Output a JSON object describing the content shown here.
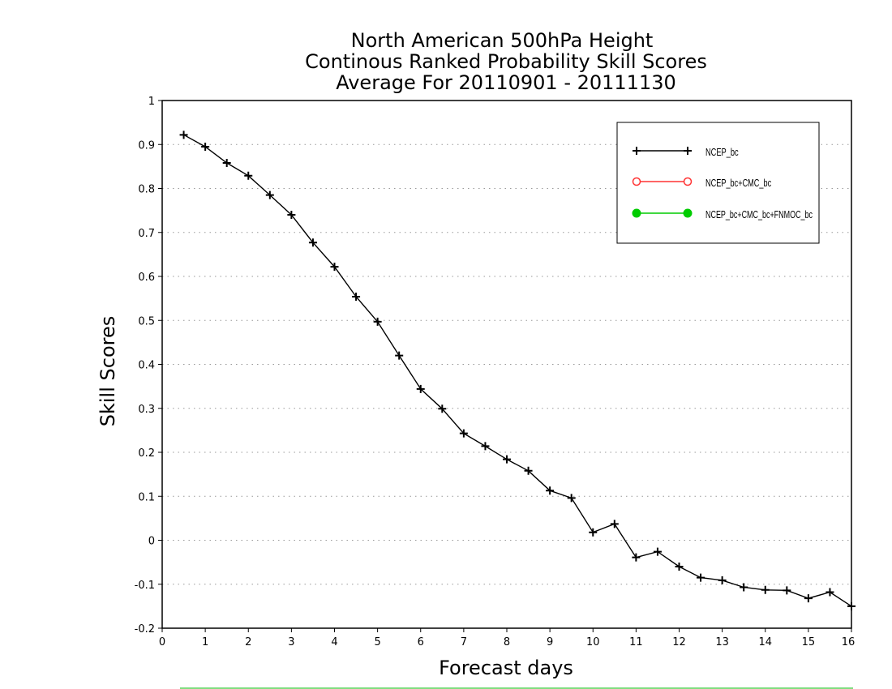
{
  "chart_data": {
    "type": "line",
    "title_lines": [
      "North American 500hPa Height",
      "Continous Ranked Probability Skill Scores",
      "Average For 20110901 - 20111130"
    ],
    "xlabel": "Forecast days",
    "ylabel": "Skill Scores",
    "xlim": [
      0,
      16
    ],
    "ylim": [
      -0.2,
      1
    ],
    "x_ticks": [
      0,
      1,
      2,
      3,
      4,
      5,
      6,
      7,
      8,
      9,
      10,
      11,
      12,
      13,
      14,
      15,
      16
    ],
    "y_ticks": [
      -0.2,
      -0.1,
      0,
      0.1,
      0.2,
      0.3,
      0.4,
      0.5,
      0.6,
      0.7,
      0.8,
      0.9,
      1
    ],
    "y_tick_labels": [
      "-0.2",
      "-0.1",
      "0",
      "0.1",
      "0.2",
      "0.3",
      "0.4",
      "0.5",
      "0.6",
      "0.7",
      "0.8",
      "0.9",
      "1"
    ],
    "grid": "horizontal dotted",
    "legend_position": "top-right",
    "series": [
      {
        "name": "NCEP_bc",
        "color": "#000000",
        "marker": "plus",
        "x": [
          0.5,
          1,
          1.5,
          2,
          2.5,
          3,
          3.5,
          4,
          4.5,
          5,
          5.5,
          6,
          6.5,
          7,
          7.5,
          8,
          8.5,
          9,
          9.5,
          10,
          10.5,
          11,
          11.5,
          12,
          12.5,
          13,
          13.5,
          14,
          14.5,
          15,
          15.5,
          16
        ],
        "values": [
          0.922,
          0.895,
          0.858,
          0.829,
          0.785,
          0.74,
          0.677,
          0.622,
          0.554,
          0.497,
          0.42,
          0.344,
          0.299,
          0.243,
          0.214,
          0.184,
          0.158,
          0.113,
          0.096,
          0.018,
          0.037,
          -0.039,
          -0.026,
          -0.06,
          -0.085,
          -0.091,
          -0.107,
          -0.113,
          -0.114,
          -0.132,
          -0.118,
          -0.15
        ]
      },
      {
        "name": "NCEP_bc+CMC_bc",
        "color": "#ff3333",
        "marker": "open-circle",
        "x": [],
        "values": []
      },
      {
        "name": "NCEP_bc+CMC_bc+FNMOC_bc",
        "color": "#00cc00",
        "marker": "filled-circle",
        "x": [],
        "values": []
      }
    ]
  }
}
